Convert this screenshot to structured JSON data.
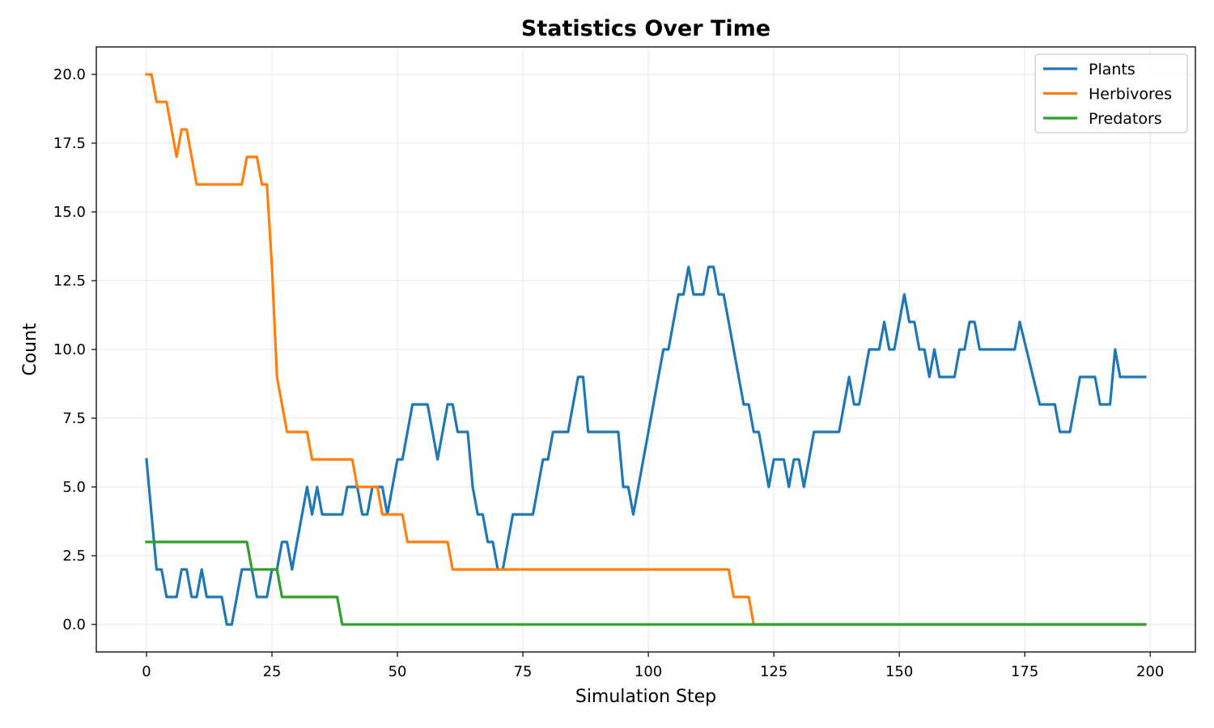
{
  "chart_data": {
    "type": "line",
    "title": "Statistics Over Time",
    "xlabel": "Simulation Step",
    "ylabel": "Count",
    "xlim": [
      -10,
      209
    ],
    "ylim": [
      -1,
      21
    ],
    "xticks": [
      0,
      25,
      50,
      75,
      100,
      125,
      150,
      175,
      200
    ],
    "yticks": [
      0.0,
      2.5,
      5.0,
      7.5,
      10.0,
      12.5,
      15.0,
      17.5,
      20.0
    ],
    "xtick_labels": [
      "0",
      "25",
      "50",
      "75",
      "100",
      "125",
      "150",
      "175",
      "200"
    ],
    "ytick_labels": [
      "0.0",
      "2.5",
      "5.0",
      "7.5",
      "10.0",
      "12.5",
      "15.0",
      "17.5",
      "20.0"
    ],
    "grid": true,
    "legend_position": "top-right",
    "series": [
      {
        "name": "Plants",
        "color": "#1f77b4",
        "points": [
          [
            0,
            6
          ],
          [
            2,
            2
          ],
          [
            3,
            2
          ],
          [
            4,
            1
          ],
          [
            6,
            1
          ],
          [
            7,
            2
          ],
          [
            8,
            2
          ],
          [
            9,
            1
          ],
          [
            10,
            1
          ],
          [
            11,
            2
          ],
          [
            12,
            1
          ],
          [
            15,
            1
          ],
          [
            16,
            0
          ],
          [
            17,
            0
          ],
          [
            19,
            2
          ],
          [
            21,
            2
          ],
          [
            22,
            1
          ],
          [
            24,
            1
          ],
          [
            25,
            2
          ],
          [
            26,
            2
          ],
          [
            27,
            3
          ],
          [
            28,
            3
          ],
          [
            29,
            2
          ],
          [
            32,
            5
          ],
          [
            33,
            4
          ],
          [
            34,
            5
          ],
          [
            35,
            4
          ],
          [
            39,
            4
          ],
          [
            40,
            5
          ],
          [
            42,
            5
          ],
          [
            43,
            4
          ],
          [
            44,
            4
          ],
          [
            45,
            5
          ],
          [
            47,
            5
          ],
          [
            48,
            4
          ],
          [
            50,
            6
          ],
          [
            51,
            6
          ],
          [
            53,
            8
          ],
          [
            56,
            8
          ],
          [
            58,
            6
          ],
          [
            60,
            8
          ],
          [
            61,
            8
          ],
          [
            62,
            7
          ],
          [
            64,
            7
          ],
          [
            65,
            5
          ],
          [
            66,
            4
          ],
          [
            67,
            4
          ],
          [
            68,
            3
          ],
          [
            69,
            3
          ],
          [
            70,
            2
          ],
          [
            71,
            2
          ],
          [
            73,
            4
          ],
          [
            77,
            4
          ],
          [
            79,
            6
          ],
          [
            80,
            6
          ],
          [
            81,
            7
          ],
          [
            84,
            7
          ],
          [
            86,
            9
          ],
          [
            87,
            9
          ],
          [
            88,
            7
          ],
          [
            94,
            7
          ],
          [
            95,
            5
          ],
          [
            96,
            5
          ],
          [
            97,
            4
          ],
          [
            103,
            10
          ],
          [
            104,
            10
          ],
          [
            106,
            12
          ],
          [
            107,
            12
          ],
          [
            108,
            13
          ],
          [
            109,
            12
          ],
          [
            111,
            12
          ],
          [
            112,
            13
          ],
          [
            113,
            13
          ],
          [
            114,
            12
          ],
          [
            115,
            12
          ],
          [
            119,
            8
          ],
          [
            120,
            8
          ],
          [
            121,
            7
          ],
          [
            122,
            7
          ],
          [
            124,
            5
          ],
          [
            125,
            6
          ],
          [
            127,
            6
          ],
          [
            128,
            5
          ],
          [
            129,
            6
          ],
          [
            130,
            6
          ],
          [
            131,
            5
          ],
          [
            133,
            7
          ],
          [
            138,
            7
          ],
          [
            140,
            9
          ],
          [
            141,
            8
          ],
          [
            142,
            8
          ],
          [
            144,
            10
          ],
          [
            146,
            10
          ],
          [
            147,
            11
          ],
          [
            148,
            10
          ],
          [
            149,
            10
          ],
          [
            151,
            12
          ],
          [
            152,
            11
          ],
          [
            153,
            11
          ],
          [
            154,
            10
          ],
          [
            155,
            10
          ],
          [
            156,
            9
          ],
          [
            157,
            10
          ],
          [
            158,
            9
          ],
          [
            161,
            9
          ],
          [
            162,
            10
          ],
          [
            163,
            10
          ],
          [
            164,
            11
          ],
          [
            165,
            11
          ],
          [
            166,
            10
          ],
          [
            173,
            10
          ],
          [
            174,
            11
          ],
          [
            178,
            8
          ],
          [
            181,
            8
          ],
          [
            182,
            7
          ],
          [
            184,
            7
          ],
          [
            186,
            9
          ],
          [
            189,
            9
          ],
          [
            190,
            8
          ],
          [
            192,
            8
          ],
          [
            193,
            10
          ],
          [
            194,
            9
          ],
          [
            199,
            9
          ]
        ]
      },
      {
        "name": "Herbivores",
        "color": "#ff7f0e",
        "points": [
          [
            0,
            20
          ],
          [
            1,
            20
          ],
          [
            2,
            19
          ],
          [
            4,
            19
          ],
          [
            6,
            17
          ],
          [
            7,
            18
          ],
          [
            8,
            18
          ],
          [
            10,
            16
          ],
          [
            19,
            16
          ],
          [
            20,
            17
          ],
          [
            22,
            17
          ],
          [
            23,
            16
          ],
          [
            24,
            16
          ],
          [
            25,
            13
          ],
          [
            26,
            9
          ],
          [
            28,
            7
          ],
          [
            32,
            7
          ],
          [
            33,
            6
          ],
          [
            41,
            6
          ],
          [
            42,
            5
          ],
          [
            46,
            5
          ],
          [
            47,
            4
          ],
          [
            51,
            4
          ],
          [
            52,
            3
          ],
          [
            60,
            3
          ],
          [
            61,
            2
          ],
          [
            116,
            2
          ],
          [
            117,
            1
          ],
          [
            120,
            1
          ],
          [
            121,
            0
          ],
          [
            199,
            0
          ]
        ]
      },
      {
        "name": "Predators",
        "color": "#2ca02c",
        "points": [
          [
            0,
            3
          ],
          [
            20,
            3
          ],
          [
            21,
            2
          ],
          [
            26,
            2
          ],
          [
            27,
            1
          ],
          [
            38,
            1
          ],
          [
            39,
            0
          ],
          [
            199,
            0
          ]
        ]
      }
    ]
  }
}
